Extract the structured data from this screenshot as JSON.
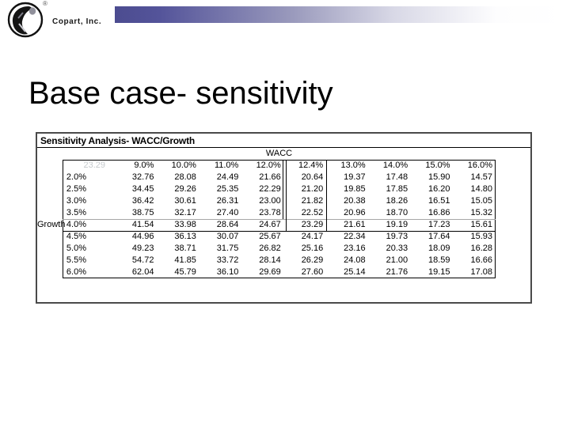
{
  "logo": {
    "company": "Copart, Inc.",
    "registered_mark": "®"
  },
  "title": "Base case- sensitivity",
  "colors": {
    "gradient_bar_start": "#4c4c90",
    "panel_border": "#4a4a4a",
    "corner_text": "#c6cacd",
    "base_row_divider_gray": "#a6a6a6"
  },
  "panel": {
    "header": "Sensitivity Analysis- WACC/Growth",
    "axis_top_label": "WACC",
    "axis_left_label": "Growth",
    "corner_value": "23.29",
    "wacc_headers": [
      "9.0%",
      "10.0%",
      "11.0%",
      "12.0%",
      "12.4%",
      "13.0%",
      "14.0%",
      "15.0%",
      "16.0%"
    ],
    "rows": [
      {
        "growth": "2.0%",
        "values": [
          "32.76",
          "28.08",
          "24.49",
          "21.66",
          "20.64",
          "19.37",
          "17.48",
          "15.90",
          "14.57"
        ]
      },
      {
        "growth": "2.5%",
        "values": [
          "34.45",
          "29.26",
          "25.35",
          "22.29",
          "21.20",
          "19.85",
          "17.85",
          "16.20",
          "14.80"
        ]
      },
      {
        "growth": "3.0%",
        "values": [
          "36.42",
          "30.61",
          "26.31",
          "23.00",
          "21.82",
          "20.38",
          "18.26",
          "16.51",
          "15.05"
        ]
      },
      {
        "growth": "3.5%",
        "values": [
          "38.75",
          "32.17",
          "27.40",
          "23.78",
          "22.52",
          "20.96",
          "18.70",
          "16.86",
          "15.32"
        ]
      },
      {
        "growth": "4.0%",
        "values": [
          "41.54",
          "33.98",
          "28.64",
          "24.67",
          "23.29",
          "21.61",
          "19.19",
          "17.23",
          "15.61"
        ]
      },
      {
        "growth": "4.5%",
        "values": [
          "44.96",
          "36.13",
          "30.07",
          "25.67",
          "24.17",
          "22.34",
          "19.73",
          "17.64",
          "15.93"
        ]
      },
      {
        "growth": "5.0%",
        "values": [
          "49.23",
          "38.71",
          "31.75",
          "26.82",
          "25.16",
          "23.16",
          "20.33",
          "18.09",
          "16.28"
        ]
      },
      {
        "growth": "5.5%",
        "values": [
          "54.72",
          "41.85",
          "33.72",
          "28.14",
          "26.29",
          "24.08",
          "21.00",
          "18.59",
          "16.66"
        ]
      },
      {
        "growth": "6.0%",
        "values": [
          "62.04",
          "45.79",
          "36.10",
          "29.69",
          "27.60",
          "25.14",
          "21.76",
          "19.15",
          "17.08"
        ]
      }
    ]
  }
}
